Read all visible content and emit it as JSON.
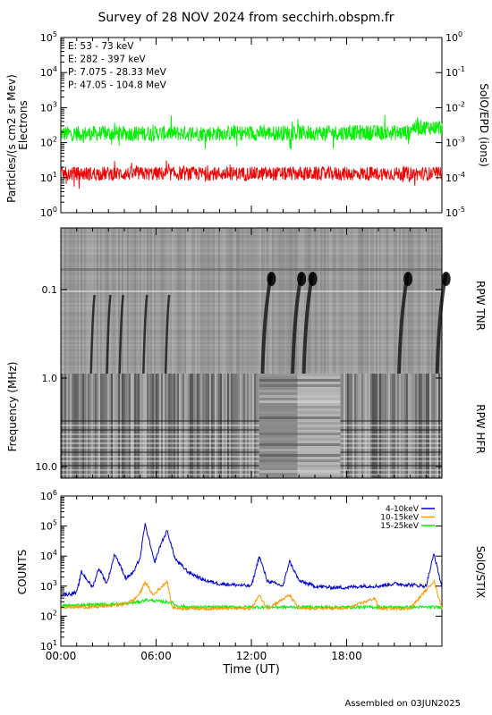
{
  "title": "Survey of 28 NOV 2024 from secchirh.obspm.fr",
  "footer": "Assembled on 03JUN2025",
  "panels": {
    "epd": {
      "ylabel_left": [
        "Particles/(s cm2 sr Mev)",
        "Electrons"
      ],
      "ylabel_right": "SolO/EPD (ions)",
      "yticks_left": [
        {
          "base": "10",
          "exp": "5"
        },
        {
          "base": "10",
          "exp": "4"
        },
        {
          "base": "10",
          "exp": "3"
        },
        {
          "base": "10",
          "exp": "2"
        },
        {
          "base": "10",
          "exp": "1"
        },
        {
          "base": "10",
          "exp": "0"
        }
      ],
      "yticks_right": [
        {
          "base": "10",
          "exp": "0"
        },
        {
          "base": "10",
          "exp": "-1"
        },
        {
          "base": "10",
          "exp": "-2"
        },
        {
          "base": "10",
          "exp": "-3"
        },
        {
          "base": "10",
          "exp": "-4"
        },
        {
          "base": "10",
          "exp": "-5"
        }
      ],
      "legend": [
        {
          "label": "E: 53 - 73 keV",
          "color": "#00ee00"
        },
        {
          "label": "E: 282 - 397 keV",
          "color": "#ee0000"
        },
        {
          "label": "P: 7.075 - 28.33 MeV",
          "color": "#000000"
        },
        {
          "label": "P: 47.05 - 104.8 MeV",
          "color": "#0000cc"
        }
      ]
    },
    "rpw": {
      "ylabel": "Frequency (MHz)",
      "label_tnr": "RPW TNR",
      "label_hfr": "RPW HFR",
      "yticks": [
        "0.1",
        "1.0",
        "10.0"
      ]
    },
    "stix": {
      "ylabel": "COUNTS",
      "ylabel_right": "SolO/STIX",
      "yticks": [
        {
          "base": "10",
          "exp": "6"
        },
        {
          "base": "10",
          "exp": "5"
        },
        {
          "base": "10",
          "exp": "4"
        },
        {
          "base": "10",
          "exp": "3"
        },
        {
          "base": "10",
          "exp": "2"
        },
        {
          "base": "10",
          "exp": "1"
        }
      ],
      "legend": [
        {
          "label": "4-10keV",
          "color": "#0000cc"
        },
        {
          "label": "10-15keV",
          "color": "#ff9900"
        },
        {
          "label": "15-25keV",
          "color": "#00ee00"
        }
      ]
    }
  },
  "xaxis": {
    "label": "Time (UT)",
    "ticks": [
      "00:00",
      "06:00",
      "12:00",
      "18:00"
    ]
  },
  "chart_data": [
    {
      "type": "line",
      "title": "",
      "xlabel": "",
      "ylabel": "Particles/(s cm2 sr Mev) Electrons",
      "x_range": [
        "00:00",
        "24:00"
      ],
      "ylim": [
        1,
        100000
      ],
      "yscale": "log",
      "series": [
        {
          "name": "E: 53 - 73 keV",
          "color": "#00ee00",
          "level": 180
        },
        {
          "name": "E: 282 - 397 keV",
          "color": "#ee0000",
          "level": 13
        },
        {
          "name": "P: 7.075 - 28.33 MeV",
          "color": "#000000",
          "level": null
        },
        {
          "name": "P: 47.05 - 104.8 MeV",
          "color": "#0000cc",
          "level": null
        }
      ]
    },
    {
      "type": "heatmap",
      "title": "",
      "ylabel": "Frequency (MHz)",
      "x_range": [
        "00:00",
        "24:00"
      ],
      "yscale": "log",
      "ylim": [
        16,
        0.004
      ],
      "bursts_hours": [
        1.9,
        2.9,
        3.7,
        5.2,
        6.6,
        12.7,
        14.6,
        15.3,
        21.3,
        23.7
      ]
    },
    {
      "type": "line",
      "title": "",
      "ylabel": "COUNTS",
      "xlabel": "Time (UT)",
      "x_range": [
        "00:00",
        "24:00"
      ],
      "ylim": [
        10,
        1000000
      ],
      "yscale": "log",
      "series": [
        {
          "name": "4-10keV",
          "color": "#0000cc",
          "x": [
            0,
            1.0,
            1.3,
            2.0,
            2.4,
            2.9,
            3.4,
            4.1,
            4.6,
            5.0,
            5.3,
            5.9,
            6.3,
            6.7,
            7.2,
            8.0,
            9.0,
            10.0,
            11.0,
            12.0,
            12.5,
            13.0,
            14.0,
            14.4,
            15.0,
            16.0,
            17.0,
            18.0,
            19.0,
            20.0,
            21.0,
            22.0,
            23.0,
            23.5,
            24.0
          ],
          "y": [
            500,
            600,
            3000,
            900,
            4000,
            1200,
            12000,
            1800,
            3000,
            9000,
            120000,
            6000,
            25000,
            70000,
            8000,
            3000,
            1600,
            1200,
            1100,
            1000,
            10000,
            1500,
            1000,
            7000,
            1500,
            1000,
            900,
            900,
            1000,
            1000,
            1200,
            1100,
            1000,
            12000,
            900
          ]
        },
        {
          "name": "10-15keV",
          "color": "#ff9900",
          "x": [
            0,
            2.0,
            3.0,
            4.0,
            4.6,
            5.0,
            5.3,
            5.8,
            6.3,
            6.7,
            7.0,
            7.5,
            8.0,
            12.0,
            12.5,
            13.0,
            14.4,
            15.0,
            18.0,
            19.8,
            20.0,
            22.0,
            23.5,
            24.0
          ],
          "y": [
            200,
            200,
            220,
            250,
            350,
            600,
            1400,
            500,
            900,
            1500,
            200,
            180,
            180,
            180,
            500,
            180,
            500,
            180,
            180,
            400,
            180,
            180,
            1500,
            180
          ]
        },
        {
          "name": "15-25keV",
          "color": "#00ee00",
          "x": [
            0,
            2.0,
            4.0,
            5.0,
            5.3,
            6.0,
            6.5,
            7.0,
            7.3,
            8.0,
            12.0,
            16.0,
            20.0,
            24.0
          ],
          "y": [
            220,
            240,
            260,
            300,
            350,
            320,
            300,
            280,
            220,
            200,
            200,
            200,
            200,
            200
          ]
        }
      ]
    }
  ]
}
